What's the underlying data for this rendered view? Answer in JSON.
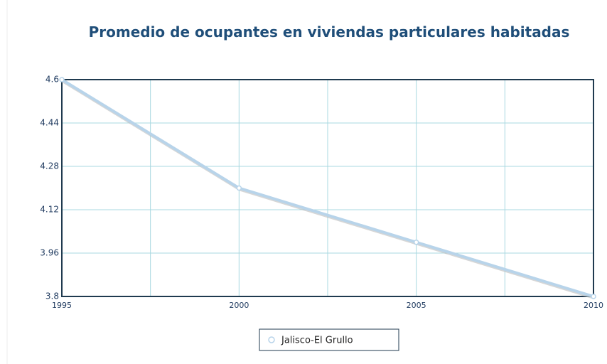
{
  "chart_data": {
    "type": "line",
    "title": "Promedio de ocupantes en viviendas particulares habitadas",
    "x": [
      1995,
      2000,
      2005,
      2010
    ],
    "series": [
      {
        "name": "Jalisco-El Grullo",
        "color": "#b8d4ea",
        "values": [
          4.6,
          4.2,
          4.0,
          3.8
        ]
      }
    ],
    "xlim": [
      1995,
      2010
    ],
    "xticks": [
      1995,
      2000,
      2005,
      2010
    ],
    "ylim": [
      3.8,
      4.6
    ],
    "yticks": [
      3.8,
      3.96,
      4.12,
      4.28,
      4.44,
      4.6
    ],
    "grid": true,
    "legend": "bottom"
  }
}
